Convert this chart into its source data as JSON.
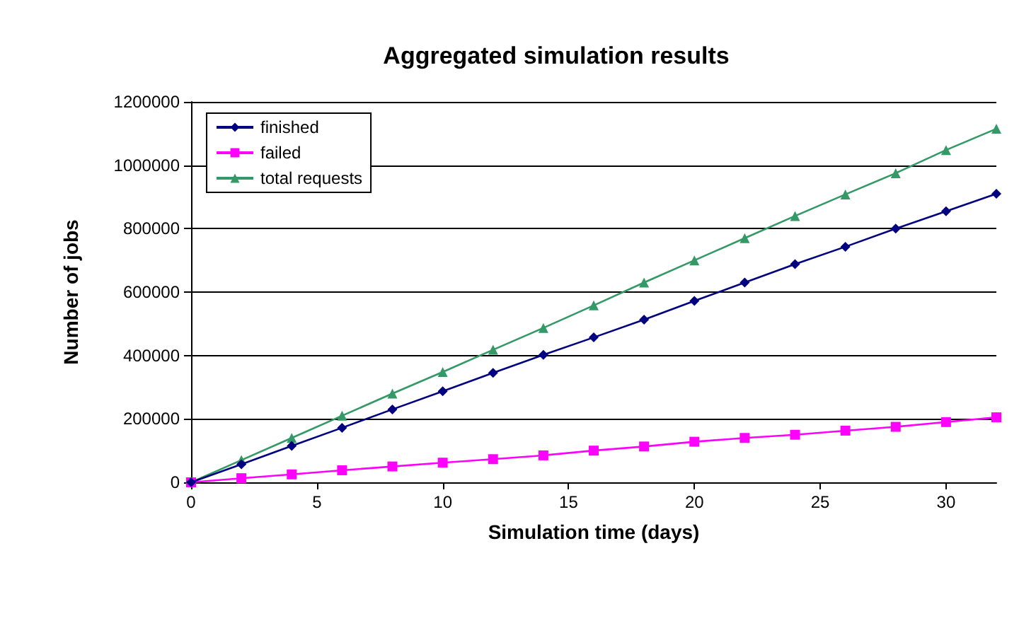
{
  "chart_data": {
    "type": "line",
    "title": "Aggregated simulation results",
    "xlabel": "Simulation time (days)",
    "ylabel": "Number of jobs",
    "x": [
      0,
      2,
      4,
      6,
      8,
      10,
      12,
      14,
      16,
      18,
      20,
      22,
      24,
      26,
      28,
      30,
      32
    ],
    "series": [
      {
        "name": "finished",
        "color": "#000080",
        "marker": "diamond",
        "values": [
          0,
          57000,
          115000,
          172000,
          230000,
          287000,
          345000,
          402000,
          457000,
          513000,
          572000,
          630000,
          688000,
          743000,
          800000,
          855000,
          910000
        ]
      },
      {
        "name": "failed",
        "color": "#ff00ff",
        "marker": "square",
        "values": [
          0,
          13000,
          25000,
          38000,
          50000,
          62000,
          73000,
          85000,
          100000,
          113000,
          128000,
          140000,
          150000,
          163000,
          175000,
          190000,
          205000
        ]
      },
      {
        "name": "total requests",
        "color": "#339966",
        "marker": "triangle",
        "values": [
          0,
          70000,
          140000,
          210000,
          280000,
          348000,
          418000,
          487000,
          558000,
          630000,
          700000,
          770000,
          840000,
          908000,
          975000,
          1048000,
          1115000
        ]
      }
    ],
    "xlim": [
      0,
      32
    ],
    "xticks": [
      0,
      5,
      10,
      15,
      20,
      25,
      30
    ],
    "ylim": [
      0,
      1200000
    ],
    "yticks": [
      0,
      200000,
      400000,
      600000,
      800000,
      1000000,
      1200000
    ],
    "grid": "y",
    "legend": "top left"
  }
}
